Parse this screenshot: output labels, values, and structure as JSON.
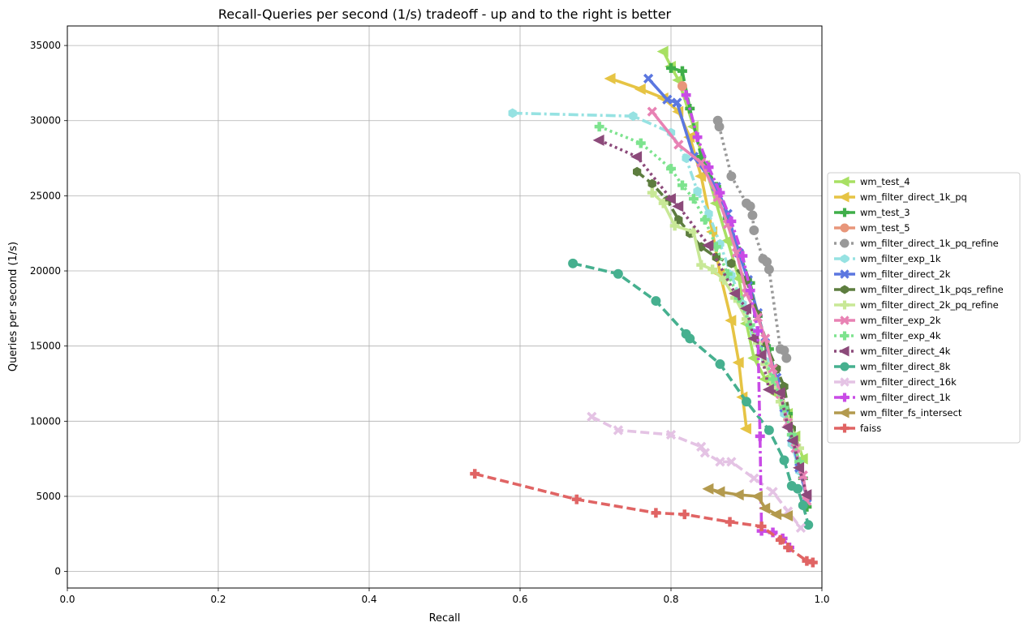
{
  "chart_data": {
    "type": "line",
    "title": "Recall-Queries per second (1/s) tradeoff - up and to the right is better",
    "xlabel": "Recall",
    "ylabel": "Queries per second (1/s)",
    "xlim": [
      0.0,
      1.0
    ],
    "ylim": [
      -1100,
      36300
    ],
    "xticks": [
      "0.0",
      "0.2",
      "0.4",
      "0.6",
      "0.8",
      "1.0"
    ],
    "xtick_values": [
      0.0,
      0.2,
      0.4,
      0.6,
      0.8,
      1.0
    ],
    "yticks": [
      "0",
      "5000",
      "10000",
      "15000",
      "20000",
      "25000",
      "30000",
      "35000"
    ],
    "ytick_values": [
      0,
      5000,
      10000,
      15000,
      20000,
      25000,
      30000,
      35000
    ],
    "grid": true,
    "legend_position": "right-outside",
    "series": [
      {
        "name": "wm_test_4",
        "color": "#a8e063",
        "dash": "solid",
        "marker": "triangle-left",
        "points": [
          [
            0.79,
            34600
          ],
          [
            0.8,
            33600
          ],
          [
            0.81,
            32700
          ],
          [
            0.83,
            29600
          ],
          [
            0.845,
            27000
          ],
          [
            0.86,
            24500
          ],
          [
            0.875,
            22000
          ],
          [
            0.89,
            19500
          ],
          [
            0.9,
            16500
          ],
          [
            0.91,
            14200
          ],
          [
            0.925,
            12800
          ],
          [
            0.94,
            11800
          ],
          [
            0.955,
            10500
          ],
          [
            0.965,
            9000
          ],
          [
            0.975,
            7500
          ]
        ]
      },
      {
        "name": "wm_filter_direct_1k_pq",
        "color": "#e6c444",
        "dash": "solid",
        "marker": "triangle-left",
        "points": [
          [
            0.72,
            32800
          ],
          [
            0.76,
            32100
          ],
          [
            0.79,
            31500
          ],
          [
            0.81,
            30600
          ],
          [
            0.825,
            28900
          ],
          [
            0.84,
            26300
          ],
          [
            0.855,
            22600
          ],
          [
            0.865,
            19800
          ],
          [
            0.88,
            16700
          ],
          [
            0.89,
            13900
          ],
          [
            0.895,
            11600
          ],
          [
            0.9,
            9500
          ]
        ]
      },
      {
        "name": "wm_test_3",
        "color": "#3fae49",
        "dash": "dash",
        "marker": "plus",
        "points": [
          [
            0.8,
            33500
          ],
          [
            0.815,
            33300
          ],
          [
            0.825,
            30800
          ],
          [
            0.84,
            27600
          ],
          [
            0.86,
            25600
          ],
          [
            0.875,
            23500
          ],
          [
            0.89,
            21300
          ],
          [
            0.905,
            19200
          ],
          [
            0.915,
            17000
          ],
          [
            0.93,
            14800
          ],
          [
            0.94,
            12700
          ],
          [
            0.955,
            10500
          ],
          [
            0.965,
            8300
          ],
          [
            0.975,
            6200
          ],
          [
            0.98,
            4300
          ]
        ]
      },
      {
        "name": "wm_test_5",
        "color": "#e8967a",
        "dash": "solid",
        "marker": "circle",
        "points": [
          [
            0.815,
            32300
          ]
        ]
      },
      {
        "name": "wm_filter_direct_1k_pq_refine",
        "color": "#999999",
        "dash": "dot",
        "marker": "circle",
        "points": [
          [
            0.862,
            30000
          ],
          [
            0.864,
            29600
          ],
          [
            0.88,
            26300
          ],
          [
            0.9,
            24500
          ],
          [
            0.905,
            24300
          ],
          [
            0.908,
            23700
          ],
          [
            0.91,
            22700
          ],
          [
            0.922,
            20800
          ],
          [
            0.927,
            20600
          ],
          [
            0.93,
            20100
          ],
          [
            0.945,
            14800
          ],
          [
            0.95,
            14700
          ],
          [
            0.953,
            14200
          ]
        ]
      },
      {
        "name": "wm_filter_exp_1k",
        "color": "#96e2e2",
        "dash": "dashdot",
        "marker": "hexagon",
        "points": [
          [
            0.59,
            30500
          ],
          [
            0.75,
            30300
          ],
          [
            0.8,
            29200
          ],
          [
            0.82,
            27500
          ],
          [
            0.835,
            25300
          ],
          [
            0.85,
            23800
          ],
          [
            0.865,
            21800
          ],
          [
            0.88,
            19700
          ],
          [
            0.895,
            17800
          ],
          [
            0.91,
            15900
          ],
          [
            0.925,
            14000
          ],
          [
            0.94,
            12200
          ],
          [
            0.95,
            10500
          ],
          [
            0.96,
            8500
          ],
          [
            0.97,
            6700
          ]
        ]
      },
      {
        "name": "wm_filter_direct_2k",
        "color": "#5b77e0",
        "dash": "solid",
        "marker": "x",
        "points": [
          [
            0.77,
            32800
          ],
          [
            0.795,
            31400
          ],
          [
            0.808,
            31200
          ],
          [
            0.83,
            27600
          ],
          [
            0.86,
            25600
          ],
          [
            0.875,
            23800
          ],
          [
            0.89,
            21200
          ],
          [
            0.902,
            19400
          ],
          [
            0.915,
            17200
          ],
          [
            0.925,
            15200
          ],
          [
            0.94,
            12900
          ],
          [
            0.95,
            10900
          ],
          [
            0.96,
            8900
          ],
          [
            0.97,
            6900
          ],
          [
            0.98,
            4900
          ]
        ]
      },
      {
        "name": "wm_filter_direct_1k_pqs_refine",
        "color": "#5d7d3f",
        "dash": "dash",
        "marker": "hexagon",
        "points": [
          [
            0.755,
            26600
          ],
          [
            0.775,
            25800
          ],
          [
            0.795,
            24700
          ],
          [
            0.81,
            23400
          ],
          [
            0.825,
            22500
          ],
          [
            0.84,
            21600
          ],
          [
            0.86,
            20900
          ],
          [
            0.88,
            20500
          ],
          [
            0.9,
            19400
          ],
          [
            0.915,
            17100
          ],
          [
            0.925,
            15200
          ],
          [
            0.94,
            13500
          ],
          [
            0.95,
            12300
          ],
          [
            0.96,
            9500
          ]
        ]
      },
      {
        "name": "wm_filter_direct_2k_pq_refine",
        "color": "#c8e896",
        "dash": "solid",
        "marker": "plus",
        "points": [
          [
            0.775,
            25200
          ],
          [
            0.79,
            24500
          ],
          [
            0.805,
            23000
          ],
          [
            0.83,
            22600
          ],
          [
            0.84,
            20400
          ],
          [
            0.855,
            20100
          ],
          [
            0.87,
            19400
          ],
          [
            0.885,
            18200
          ],
          [
            0.9,
            16800
          ],
          [
            0.915,
            15200
          ],
          [
            0.925,
            13800
          ],
          [
            0.935,
            12600
          ],
          [
            0.945,
            11300
          ],
          [
            0.955,
            10100
          ],
          [
            0.97,
            8200
          ]
        ]
      },
      {
        "name": "wm_filter_exp_2k",
        "color": "#e882b4",
        "dash": "solid",
        "marker": "x",
        "points": [
          [
            0.775,
            30600
          ],
          [
            0.81,
            28400
          ],
          [
            0.84,
            27200
          ],
          [
            0.862,
            24900
          ],
          [
            0.875,
            23100
          ],
          [
            0.887,
            21200
          ],
          [
            0.9,
            18500
          ],
          [
            0.915,
            16900
          ],
          [
            0.925,
            15500
          ],
          [
            0.935,
            13500
          ],
          [
            0.945,
            11800
          ],
          [
            0.955,
            9900
          ],
          [
            0.965,
            8200
          ],
          [
            0.975,
            6400
          ],
          [
            0.98,
            4700
          ]
        ]
      },
      {
        "name": "wm_filter_exp_4k",
        "color": "#7de38e",
        "dash": "dot",
        "marker": "plus",
        "points": [
          [
            0.705,
            29600
          ],
          [
            0.76,
            28500
          ],
          [
            0.8,
            26800
          ],
          [
            0.815,
            25700
          ],
          [
            0.83,
            24800
          ],
          [
            0.845,
            23400
          ],
          [
            0.86,
            21600
          ],
          [
            0.875,
            19800
          ],
          [
            0.89,
            18200
          ],
          [
            0.905,
            16400
          ],
          [
            0.92,
            14600
          ],
          [
            0.935,
            12800
          ],
          [
            0.95,
            10900
          ],
          [
            0.96,
            9100
          ],
          [
            0.97,
            7300
          ]
        ]
      },
      {
        "name": "wm_filter_direct_4k",
        "color": "#8c4a7a",
        "dash": "dot",
        "marker": "triangle-left",
        "points": [
          [
            0.705,
            28700
          ],
          [
            0.755,
            27600
          ],
          [
            0.8,
            24800
          ],
          [
            0.81,
            24300
          ],
          [
            0.85,
            21700
          ],
          [
            0.885,
            18500
          ],
          [
            0.9,
            17500
          ],
          [
            0.91,
            15500
          ],
          [
            0.92,
            14400
          ],
          [
            0.93,
            12100
          ],
          [
            0.945,
            11900
          ],
          [
            0.955,
            9600
          ],
          [
            0.962,
            8700
          ],
          [
            0.97,
            6900
          ],
          [
            0.98,
            5100
          ]
        ]
      },
      {
        "name": "wm_filter_direct_8k",
        "color": "#46b08f",
        "dash": "dash",
        "marker": "circle",
        "points": [
          [
            0.67,
            20500
          ],
          [
            0.73,
            19800
          ],
          [
            0.78,
            18000
          ],
          [
            0.82,
            15800
          ],
          [
            0.825,
            15500
          ],
          [
            0.865,
            13800
          ],
          [
            0.9,
            11300
          ],
          [
            0.93,
            9400
          ],
          [
            0.95,
            7400
          ],
          [
            0.96,
            5700
          ],
          [
            0.968,
            5500
          ],
          [
            0.975,
            4400
          ],
          [
            0.982,
            3100
          ]
        ]
      },
      {
        "name": "wm_filter_direct_16k",
        "color": "#e4c3e4",
        "dash": "dash",
        "marker": "x",
        "points": [
          [
            0.695,
            10300
          ],
          [
            0.73,
            9400
          ],
          [
            0.8,
            9100
          ],
          [
            0.84,
            8300
          ],
          [
            0.845,
            7900
          ],
          [
            0.865,
            7300
          ],
          [
            0.88,
            7300
          ],
          [
            0.91,
            6200
          ],
          [
            0.935,
            5300
          ],
          [
            0.955,
            4000
          ],
          [
            0.972,
            2900
          ]
        ]
      },
      {
        "name": "wm_filter_direct_1k",
        "color": "#c94be6",
        "dash": "dashdot",
        "marker": "plus",
        "points": [
          [
            0.82,
            31700
          ],
          [
            0.835,
            28900
          ],
          [
            0.85,
            26900
          ],
          [
            0.865,
            25200
          ],
          [
            0.88,
            23300
          ],
          [
            0.895,
            21000
          ],
          [
            0.905,
            18700
          ],
          [
            0.915,
            16000
          ],
          [
            0.918,
            9000
          ],
          [
            0.92,
            2700
          ],
          [
            0.935,
            2600
          ],
          [
            0.948,
            2200
          ],
          [
            0.957,
            1600
          ]
        ]
      },
      {
        "name": "wm_filter_fs_intersect",
        "color": "#b39a4e",
        "dash": "solid",
        "marker": "triangle-left",
        "points": [
          [
            0.85,
            5500
          ],
          [
            0.865,
            5300
          ],
          [
            0.89,
            5100
          ],
          [
            0.915,
            5000
          ],
          [
            0.925,
            4200
          ],
          [
            0.94,
            3800
          ],
          [
            0.955,
            3700
          ]
        ]
      },
      {
        "name": "faiss",
        "color": "#e06464",
        "dash": "dash",
        "marker": "plus",
        "points": [
          [
            0.54,
            6500
          ],
          [
            0.675,
            4800
          ],
          [
            0.78,
            3900
          ],
          [
            0.818,
            3800
          ],
          [
            0.878,
            3300
          ],
          [
            0.92,
            3000
          ],
          [
            0.945,
            2100
          ],
          [
            0.955,
            1600
          ],
          [
            0.98,
            700
          ],
          [
            0.988,
            600
          ]
        ]
      }
    ]
  }
}
